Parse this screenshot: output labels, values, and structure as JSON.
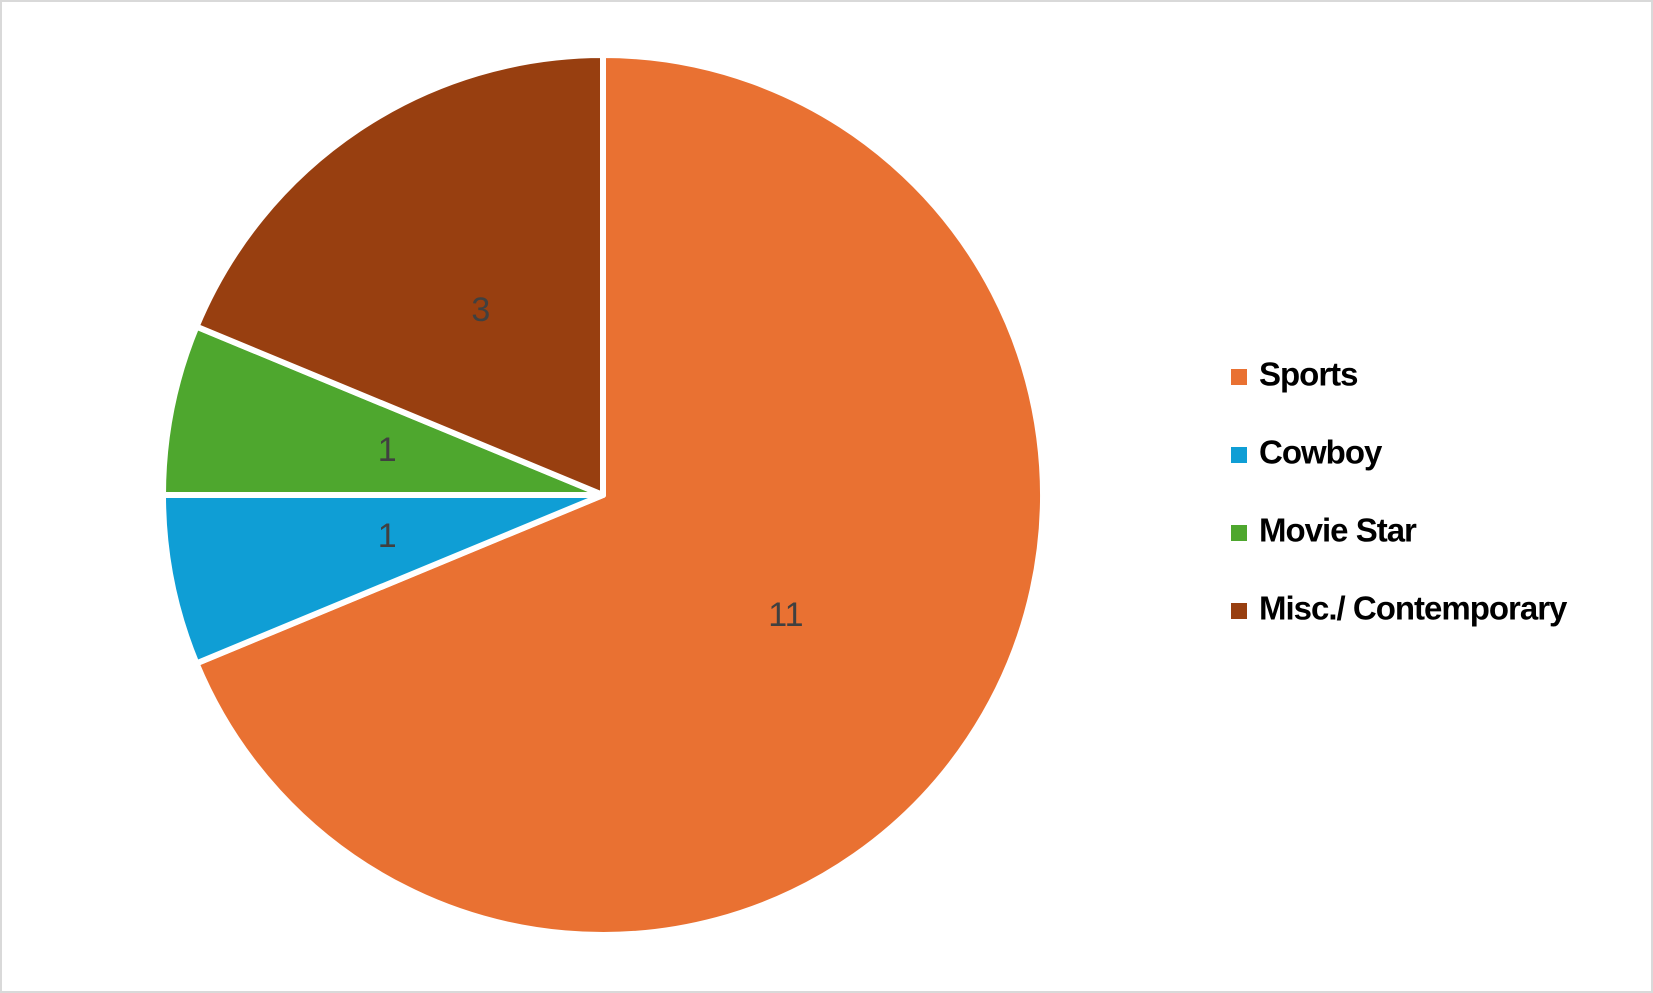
{
  "chart_data": {
    "type": "pie",
    "categories": [
      "Sports",
      "Cowboy",
      "Movie Star",
      "Misc./ Contemporary"
    ],
    "values": [
      11,
      1,
      1,
      3
    ],
    "colors": [
      "#e97132",
      "#0f9ed5",
      "#4ea72e",
      "#983f10"
    ],
    "legend": "right"
  }
}
